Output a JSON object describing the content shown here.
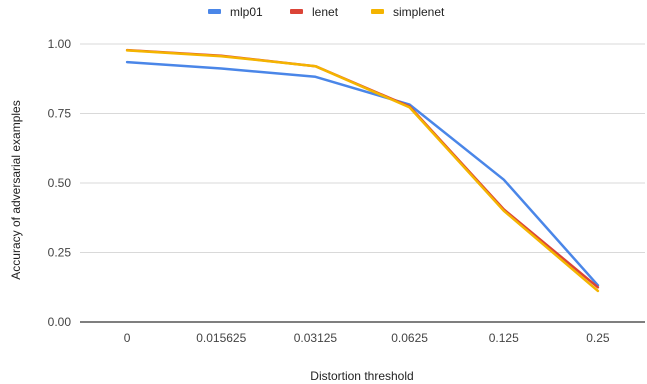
{
  "chart_data": {
    "type": "line",
    "title": "",
    "xlabel": "Distortion threshold",
    "ylabel": "Accuracy of adversarial examples",
    "categories": [
      "0",
      "0.015625",
      "0.03125",
      "0.0625",
      "0.125",
      "0.25"
    ],
    "ylim": [
      0,
      1
    ],
    "yticks": [
      "0.00",
      "0.25",
      "0.50",
      "0.75",
      "1.00"
    ],
    "grid": true,
    "legend_position": "top",
    "series": [
      {
        "name": "mlp01",
        "color": "#4a86e8",
        "values": [
          0.935,
          0.912,
          0.882,
          0.782,
          0.512,
          0.132
        ]
      },
      {
        "name": "lenet",
        "color": "#db4437",
        "values": [
          0.978,
          0.958,
          0.92,
          0.775,
          0.405,
          0.125
        ]
      },
      {
        "name": "simplenet",
        "color": "#f4b400",
        "values": [
          0.977,
          0.956,
          0.92,
          0.772,
          0.4,
          0.112
        ]
      }
    ]
  }
}
